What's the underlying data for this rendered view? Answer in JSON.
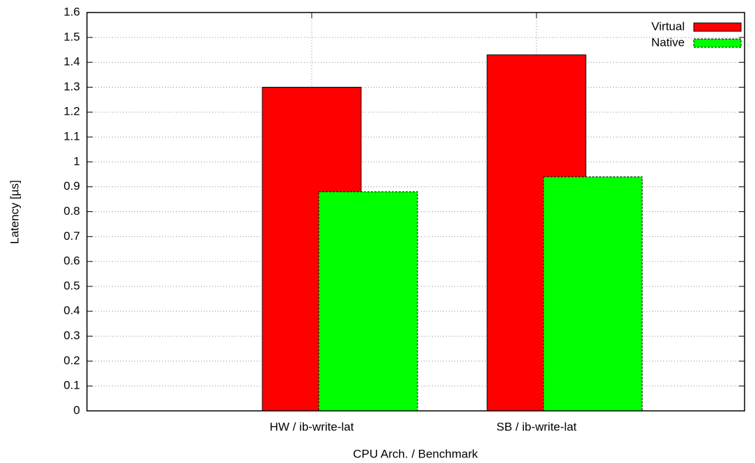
{
  "chart_data": {
    "type": "bar",
    "xlabel": "CPU Arch. / Benchmark",
    "ylabel": "Latency [µs]",
    "categories": [
      "HW / ib-write-lat",
      "SB / ib-write-lat"
    ],
    "series": [
      {
        "name": "Virtual",
        "color": "#ff0000",
        "values": [
          1.3,
          1.43
        ]
      },
      {
        "name": "Native",
        "color": "#00ff00",
        "values": [
          0.88,
          0.94
        ]
      }
    ],
    "ylim": [
      0,
      1.6
    ],
    "yticks": [
      0,
      0.1,
      0.2,
      0.3,
      0.4,
      0.5,
      0.6,
      0.7,
      0.8,
      0.9,
      1,
      1.1,
      1.2,
      1.3,
      1.4,
      1.5,
      1.6
    ],
    "grid": true,
    "legend": "top-right"
  }
}
